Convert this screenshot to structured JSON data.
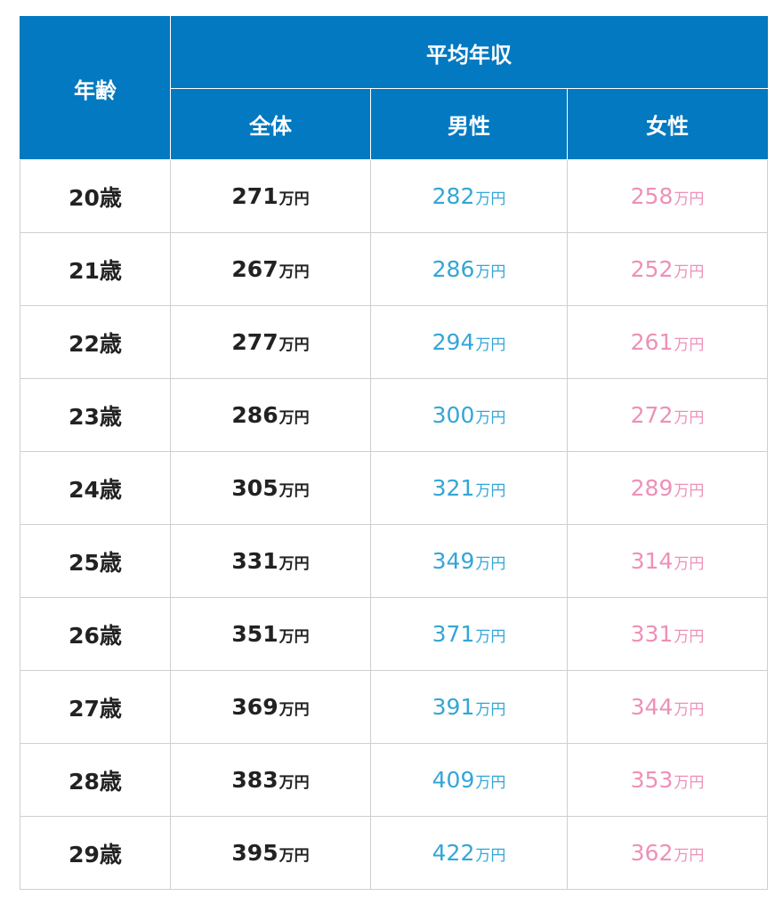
{
  "table": {
    "header": {
      "age": "年齢",
      "average_income": "平均年収",
      "total": "全体",
      "male": "男性",
      "female": "女性"
    },
    "unit": "万円",
    "rows": [
      {
        "age": "20歳",
        "total": "271",
        "male": "282",
        "female": "258"
      },
      {
        "age": "21歳",
        "total": "267",
        "male": "286",
        "female": "252"
      },
      {
        "age": "22歳",
        "total": "277",
        "male": "294",
        "female": "261"
      },
      {
        "age": "23歳",
        "total": "286",
        "male": "300",
        "female": "272"
      },
      {
        "age": "24歳",
        "total": "305",
        "male": "321",
        "female": "289"
      },
      {
        "age": "25歳",
        "total": "331",
        "male": "349",
        "female": "314"
      },
      {
        "age": "26歳",
        "total": "351",
        "male": "371",
        "female": "331"
      },
      {
        "age": "27歳",
        "total": "369",
        "male": "391",
        "female": "344"
      },
      {
        "age": "28歳",
        "total": "383",
        "male": "409",
        "female": "353"
      },
      {
        "age": "29歳",
        "total": "395",
        "male": "422",
        "female": "362"
      }
    ]
  },
  "colors": {
    "header_bg": "#0279c0",
    "male": "#33a6d6",
    "female": "#ee90b8",
    "text": "#222222"
  }
}
